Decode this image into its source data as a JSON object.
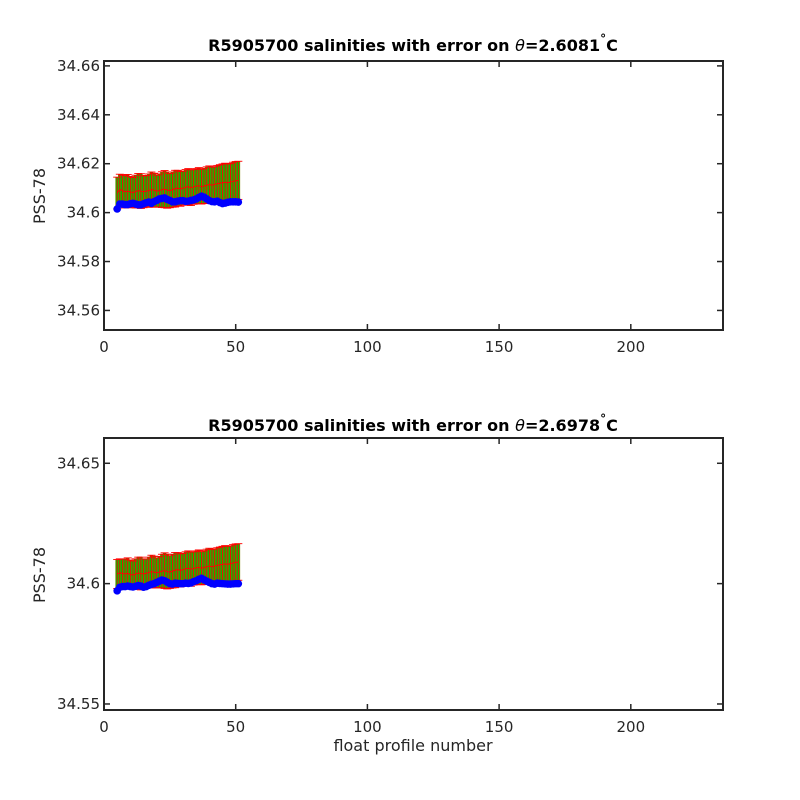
{
  "colors": {
    "mean": "#ff0000",
    "errorbar": "#ff0000",
    "fill": "#00c000",
    "fill_edge": "#808000",
    "float": "#0000ff",
    "axis": "#262626"
  },
  "chart_data": [
    {
      "type": "line",
      "title_prefix": "R5905700 salinities with error on ",
      "title_theta": "θ",
      "title_value": "=2.6081",
      "title_degree": "°",
      "title_unit": "C",
      "xlabel": "",
      "ylabel": "PSS-78",
      "xlim": [
        0,
        235
      ],
      "ylim": [
        34.552,
        34.662
      ],
      "xticks": [
        0,
        50,
        100,
        150,
        200
      ],
      "xtick_labels": [
        "0",
        "50",
        "100",
        "150",
        "200"
      ],
      "yticks": [
        34.56,
        34.58,
        34.6,
        34.62,
        34.64,
        34.66
      ],
      "ytick_labels": [
        "34.56",
        "34.58",
        "34.6",
        "34.62",
        "34.64",
        "34.66"
      ],
      "x": [
        5,
        6,
        7,
        8,
        9,
        10,
        11,
        12,
        13,
        14,
        15,
        16,
        17,
        18,
        19,
        20,
        21,
        22,
        23,
        24,
        25,
        26,
        27,
        28,
        29,
        30,
        31,
        32,
        33,
        34,
        35,
        36,
        37,
        38,
        39,
        40,
        41,
        42,
        43,
        44,
        45,
        46,
        47,
        48,
        49,
        50,
        51
      ],
      "series": [
        {
          "role": "float",
          "values": [
            34.6015,
            34.6035,
            34.6035,
            34.6033,
            34.6033,
            34.6036,
            34.6038,
            34.6035,
            34.6032,
            34.6032,
            34.6036,
            34.604,
            34.6043,
            34.6038,
            34.6045,
            34.605,
            34.6056,
            34.6058,
            34.606,
            34.6054,
            34.605,
            34.6044,
            34.6044,
            34.6047,
            34.6049,
            34.6049,
            34.6046,
            34.6047,
            34.605,
            34.6052,
            34.6056,
            34.6062,
            34.6067,
            34.6063,
            34.6056,
            34.6049,
            34.6045,
            34.6044,
            34.6047,
            34.6041,
            34.6037,
            34.6039,
            34.6042,
            34.6044,
            34.6044,
            34.6044,
            34.6043
          ]
        },
        {
          "role": "mapped-mean",
          "values": [
            34.608,
            34.6095,
            34.609,
            34.6085,
            34.6088,
            34.6085,
            34.6082,
            34.6086,
            34.609,
            34.6088,
            34.6085,
            34.6088,
            34.609,
            34.6094,
            34.6092,
            34.6088,
            34.609,
            34.6094,
            34.6096,
            34.6092,
            34.609,
            34.6094,
            34.6098,
            34.61,
            34.6097,
            34.61,
            34.6104,
            34.6106,
            34.6102,
            34.6105,
            34.6108,
            34.611,
            34.6106,
            34.6109,
            34.6112,
            34.6115,
            34.6112,
            34.6115,
            34.6118,
            34.612,
            34.6122,
            34.6124,
            34.6122,
            34.6125,
            34.6128,
            34.613,
            34.6132
          ]
        },
        {
          "role": "mapped-error",
          "values": [
            0.0065,
            0.0062,
            0.0064,
            0.0066,
            0.0068,
            0.0063,
            0.0062,
            0.0067,
            0.007,
            0.0071,
            0.0065,
            0.0064,
            0.0068,
            0.0072,
            0.0069,
            0.0065,
            0.0068,
            0.0073,
            0.0076,
            0.0074,
            0.007,
            0.0072,
            0.0075,
            0.0073,
            0.0071,
            0.007,
            0.0072,
            0.0074,
            0.0073,
            0.0071,
            0.0072,
            0.0074,
            0.0071,
            0.0072,
            0.0075,
            0.0076,
            0.0074,
            0.0073,
            0.0075,
            0.0076,
            0.0077,
            0.0078,
            0.0077,
            0.0076,
            0.0078,
            0.0079,
            0.0078
          ]
        }
      ]
    },
    {
      "type": "line",
      "title_prefix": "R5905700 salinities with error on ",
      "title_theta": "θ",
      "title_value": "=2.6978",
      "title_degree": "°",
      "title_unit": "C",
      "xlabel": "float profile number",
      "ylabel": "PSS-78",
      "xlim": [
        0,
        235
      ],
      "ylim": [
        34.5475,
        34.6605
      ],
      "xticks": [
        0,
        50,
        100,
        150,
        200
      ],
      "xtick_labels": [
        "0",
        "50",
        "100",
        "150",
        "200"
      ],
      "yticks": [
        34.55,
        34.6,
        34.65
      ],
      "ytick_labels": [
        "34.55",
        "34.6",
        "34.65"
      ],
      "x": [
        5,
        6,
        7,
        8,
        9,
        10,
        11,
        12,
        13,
        14,
        15,
        16,
        17,
        18,
        19,
        20,
        21,
        22,
        23,
        24,
        25,
        26,
        27,
        28,
        29,
        30,
        31,
        32,
        33,
        34,
        35,
        36,
        37,
        38,
        39,
        40,
        41,
        42,
        43,
        44,
        45,
        46,
        47,
        48,
        49,
        50,
        51
      ],
      "series": [
        {
          "role": "float",
          "values": [
            34.597,
            34.5985,
            34.5988,
            34.5988,
            34.599,
            34.5988,
            34.5986,
            34.5989,
            34.5992,
            34.599,
            34.5985,
            34.5988,
            34.5993,
            34.5997,
            34.6,
            34.6005,
            34.601,
            34.6015,
            34.6012,
            34.6006,
            34.6,
            34.5998,
            34.6002,
            34.6001,
            34.6,
            34.6,
            34.6002,
            34.6001,
            34.6003,
            34.6008,
            34.6012,
            34.6018,
            34.6022,
            34.6016,
            34.601,
            34.6005,
            34.6,
            34.5998,
            34.6002,
            34.6001,
            34.6,
            34.5999,
            34.5998,
            34.5998,
            34.5999,
            34.6,
            34.6
          ]
        },
        {
          "role": "mapped-mean",
          "values": [
            34.604,
            34.6045,
            34.6042,
            34.604,
            34.6043,
            34.6038,
            34.6036,
            34.604,
            34.6044,
            34.6042,
            34.604,
            34.6043,
            34.6046,
            34.605,
            34.6048,
            34.6045,
            34.6048,
            34.6052,
            34.6054,
            34.605,
            34.6048,
            34.6052,
            34.6056,
            34.6058,
            34.6055,
            34.6058,
            34.6062,
            34.6064,
            34.606,
            34.6063,
            34.6066,
            34.6068,
            34.6064,
            34.6067,
            34.607,
            34.6073,
            34.607,
            34.6073,
            34.6076,
            34.6078,
            34.608,
            34.6082,
            34.608,
            34.6083,
            34.6086,
            34.6088,
            34.609
          ]
        },
        {
          "role": "mapped-error",
          "values": [
            0.006,
            0.0058,
            0.006,
            0.0062,
            0.0064,
            0.006,
            0.0058,
            0.0063,
            0.0066,
            0.0068,
            0.0062,
            0.006,
            0.0064,
            0.0068,
            0.0066,
            0.0062,
            0.0065,
            0.007,
            0.0074,
            0.0072,
            0.0068,
            0.007,
            0.0073,
            0.0071,
            0.0069,
            0.0068,
            0.007,
            0.0072,
            0.0071,
            0.0069,
            0.007,
            0.0072,
            0.0069,
            0.007,
            0.0073,
            0.0074,
            0.0072,
            0.0071,
            0.0073,
            0.0074,
            0.0075,
            0.0076,
            0.0075,
            0.0074,
            0.0076,
            0.0077,
            0.0076
          ]
        }
      ]
    }
  ]
}
